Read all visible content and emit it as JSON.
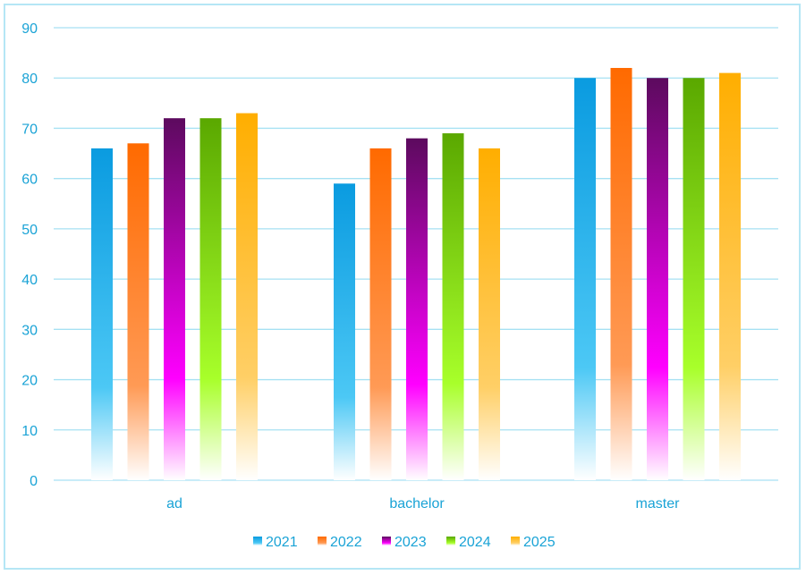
{
  "chart_data": {
    "type": "bar",
    "categories": [
      "ad",
      "bachelor",
      "master"
    ],
    "series": [
      {
        "name": "2021",
        "values": [
          66,
          59,
          80
        ]
      },
      {
        "name": "2022",
        "values": [
          67,
          66,
          82
        ]
      },
      {
        "name": "2023",
        "values": [
          72,
          68,
          80
        ]
      },
      {
        "name": "2024",
        "values": [
          72,
          69,
          80
        ]
      },
      {
        "name": "2025",
        "values": [
          73,
          66,
          81
        ]
      }
    ],
    "ylim": [
      0,
      90
    ],
    "yticks": [
      "0",
      "10",
      "20",
      "30",
      "40",
      "50",
      "60",
      "70",
      "80",
      "90"
    ],
    "grid": true,
    "legend_position": "bottom",
    "colors": {
      "2021": [
        "#0a9be0",
        "#4cc8f5",
        "#ffffff"
      ],
      "2022": [
        "#ff6a00",
        "#ff9a55",
        "#ffffff"
      ],
      "2023": [
        "#5c0a5e",
        "#ff00ff",
        "#ffffff"
      ],
      "2024": [
        "#5aa800",
        "#a8ff2a",
        "#ffffff"
      ],
      "2025": [
        "#ffae00",
        "#ffcf66",
        "#ffffff"
      ]
    },
    "gridline_color": "#a6e1f3",
    "text_color": "#1aa3d6"
  }
}
